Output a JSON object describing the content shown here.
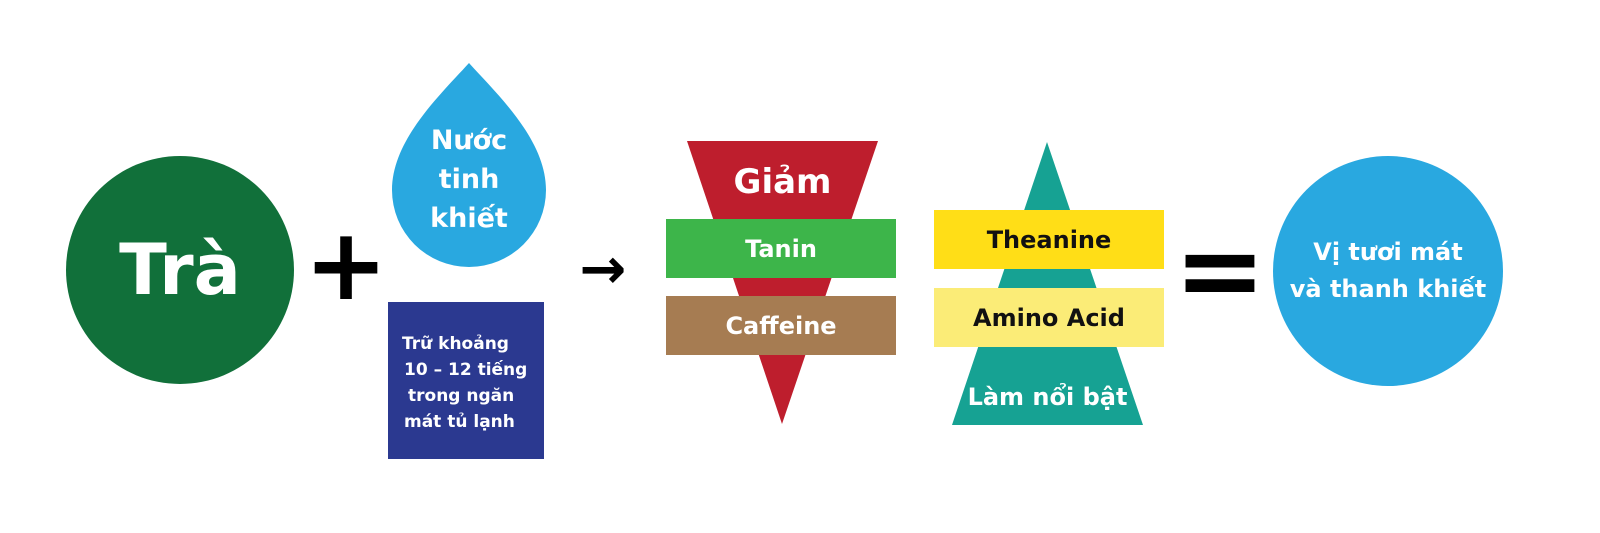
{
  "tea": {
    "label": "Trà",
    "color": "#11703A"
  },
  "plus_symbol": "+",
  "water_drop": {
    "line1": "Nước",
    "line2": "tinh",
    "line3": "khiết",
    "color": "#29A8E0"
  },
  "storage_box": {
    "line1": "Trữ khoảng",
    "line2": "10 – 12 tiếng",
    "line3": "trong ngăn",
    "line4": "mát tủ lạnh",
    "color": "#2B3990"
  },
  "arrow_symbol": "→",
  "reduce_group": {
    "title": "Giảm",
    "triangle_color": "#BE1E2D",
    "items": [
      {
        "label": "Tanin",
        "color": "#3DB54A"
      },
      {
        "label": "Caffeine",
        "color": "#A67C52"
      }
    ]
  },
  "enhance_group": {
    "caption": "Làm nổi bật",
    "triangle_color": "#16A293",
    "items": [
      {
        "label": "Theanine",
        "color": "#FFDE17"
      },
      {
        "label": "Amino Acid",
        "color": "#FBEC77"
      }
    ]
  },
  "equals_symbol": "=",
  "result": {
    "line1": "Vị tươi mát",
    "line2": "và thanh khiết",
    "color": "#29A8E0"
  }
}
